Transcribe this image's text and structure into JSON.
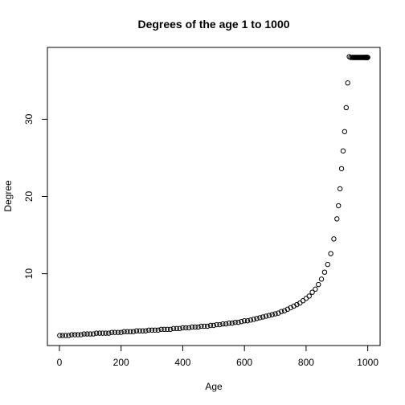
{
  "chart_data": {
    "type": "scatter",
    "title": "Degrees of the age 1 to 1000",
    "xlabel": "Age",
    "ylabel": "Degree",
    "xlim": [
      -39,
      1040
    ],
    "ylim": [
      0.7,
      39.3
    ],
    "x_ticks": [
      0,
      200,
      400,
      600,
      800,
      1000
    ],
    "y_ticks": [
      10,
      20,
      30
    ],
    "marker": "open-circle",
    "color": "#000000",
    "grid": false,
    "legend": "none",
    "series": [
      {
        "x": [
          1,
          10,
          20,
          30,
          40,
          50,
          60,
          70,
          80,
          90,
          100,
          110,
          120,
          130,
          140,
          150,
          160,
          170,
          180,
          190,
          200,
          210,
          220,
          230,
          240,
          250,
          260,
          270,
          280,
          290,
          300,
          310,
          320,
          330,
          340,
          350,
          360,
          370,
          380,
          390,
          400,
          410,
          420,
          430,
          440,
          450,
          460,
          470,
          480,
          490,
          500,
          510,
          520,
          530,
          540,
          550,
          560,
          570,
          580,
          590,
          600,
          610,
          620,
          630,
          640,
          650,
          660,
          670,
          680,
          690,
          700,
          710,
          720,
          730,
          740,
          750,
          760,
          770,
          780,
          790,
          800,
          810,
          820,
          830,
          840,
          850,
          860,
          870,
          880,
          890,
          900,
          905,
          910,
          915,
          920,
          925,
          930,
          935,
          940,
          945,
          950,
          952,
          954,
          956,
          958,
          960,
          962,
          964,
          966,
          968,
          970,
          972,
          974,
          976,
          978,
          980,
          982,
          984,
          986,
          988,
          990,
          991,
          992,
          993,
          994,
          995,
          996,
          997,
          998,
          999,
          1000
        ],
        "y": [
          2.0,
          2.0,
          2.0,
          2.0,
          2.1,
          2.1,
          2.1,
          2.1,
          2.2,
          2.2,
          2.2,
          2.2,
          2.3,
          2.3,
          2.3,
          2.3,
          2.3,
          2.4,
          2.4,
          2.4,
          2.4,
          2.5,
          2.5,
          2.5,
          2.5,
          2.6,
          2.6,
          2.6,
          2.6,
          2.7,
          2.7,
          2.7,
          2.7,
          2.8,
          2.8,
          2.8,
          2.8,
          2.9,
          2.9,
          2.9,
          3.0,
          3.0,
          3.0,
          3.1,
          3.1,
          3.1,
          3.2,
          3.2,
          3.2,
          3.3,
          3.3,
          3.4,
          3.4,
          3.5,
          3.5,
          3.6,
          3.6,
          3.7,
          3.7,
          3.8,
          3.9,
          3.9,
          4.0,
          4.1,
          4.2,
          4.3,
          4.4,
          4.5,
          4.6,
          4.7,
          4.8,
          4.9,
          5.1,
          5.2,
          5.4,
          5.6,
          5.8,
          6.0,
          6.2,
          6.5,
          6.8,
          7.1,
          7.6,
          8.0,
          8.6,
          9.3,
          10.2,
          11.2,
          12.6,
          14.5,
          17.1,
          18.8,
          21.0,
          23.6,
          25.9,
          28.4,
          31.5,
          34.7,
          38.1,
          38.0,
          38.0,
          38.0,
          38.0,
          38.0,
          38.0,
          38.0,
          38.0,
          38.0,
          38.0,
          38.0,
          38.0,
          38.0,
          38.0,
          38.0,
          38.0,
          38.0,
          38.0,
          38.0,
          38.0,
          38.0,
          38.0,
          38.0,
          38.0,
          38.0,
          38.0,
          38.0,
          38.0,
          38.0,
          38.0,
          38.0,
          38.0
        ]
      }
    ]
  }
}
